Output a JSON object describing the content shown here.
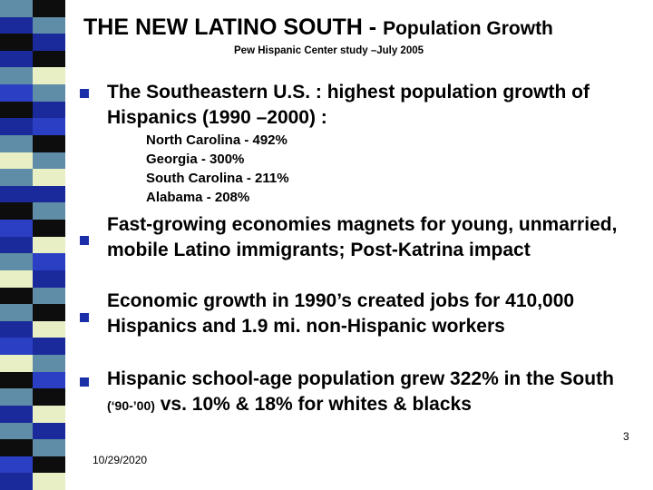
{
  "slide": {
    "title_main": "THE NEW LATINO SOUTH - ",
    "title_rest": "Population Growth",
    "subtitle": "Pew Hispanic Center study –July 2005",
    "bullets": [
      {
        "text": "The Southeastern U.S. : highest population growth of Hispanics (1990 –2000) :"
      }
    ],
    "sub_items": [
      "North Carolina - 492%",
      "Georgia - 300%",
      "South Carolina - 211%",
      "Alabama - 208%"
    ],
    "bullet2": "Fast-growing economies magnets for young, unmarried, mobile Latino immigrants; Post-Katrina impact",
    "bullet3": "Economic growth in 1990’s created jobs for 410,000 Hispanics and 1.9 mi. non-Hispanic workers",
    "bullet4_a": "Hispanic school-age population grew 322% in the South ",
    "bullet4_paren": "(‘90-’00)",
    "bullet4_b": " vs. 10% & 18% for whites & blacks",
    "date": "10/29/2020",
    "page_number": "3"
  },
  "colors": {
    "bullet": "#1a2fa8",
    "stripe_palette": [
      "#0d0d0d",
      "#1a2a9a",
      "#5f8ca6",
      "#2a3fc4",
      "#e9efc4",
      "#6f93a5"
    ]
  }
}
